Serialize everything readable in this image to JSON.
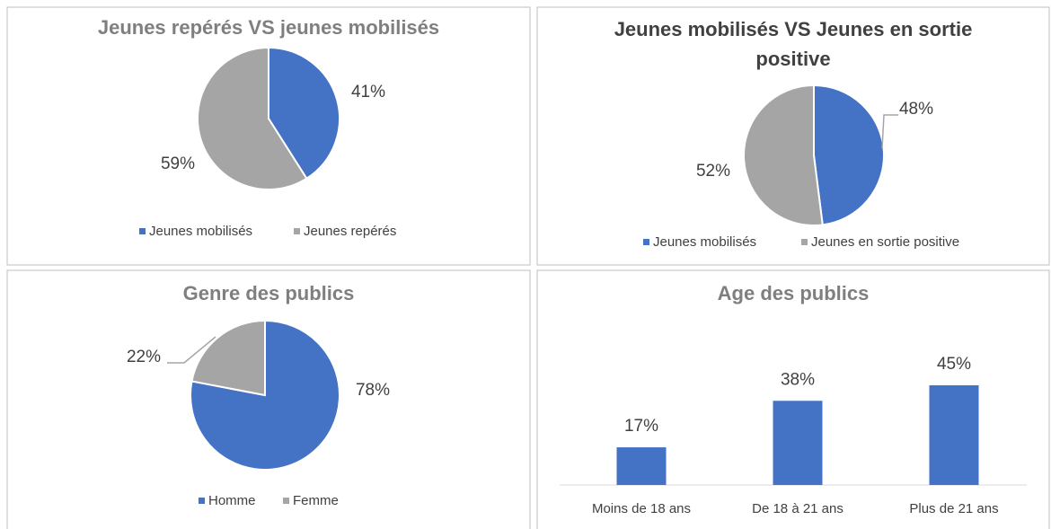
{
  "chart_data": [
    {
      "type": "pie",
      "title": "Jeunes repérés VS jeunes mobilisés",
      "categories": [
        "Jeunes mobilisés",
        "Jeunes repérés"
      ],
      "values": [
        41,
        59
      ],
      "value_labels": [
        "41%",
        "59%"
      ],
      "colors": [
        "#4472c4",
        "#a5a5a5"
      ],
      "legend": "bottom"
    },
    {
      "type": "pie",
      "title": "Jeunes mobilisés VS Jeunes en sortie positive",
      "categories": [
        "Jeunes mobilisés",
        "Jeunes en sortie positive"
      ],
      "values": [
        48,
        52
      ],
      "value_labels": [
        "48%",
        "52%"
      ],
      "colors": [
        "#4472c4",
        "#a5a5a5"
      ],
      "legend": "bottom"
    },
    {
      "type": "pie",
      "title": "Genre des publics",
      "categories": [
        "Homme",
        "Femme"
      ],
      "values": [
        78,
        22
      ],
      "value_labels": [
        "78%",
        "22%"
      ],
      "colors": [
        "#4472c4",
        "#a5a5a5"
      ],
      "legend": "bottom"
    },
    {
      "type": "bar",
      "title": "Age des publics",
      "categories": [
        "Moins de 18 ans",
        "De 18 à 21 ans",
        "Plus de 21 ans"
      ],
      "values": [
        17,
        38,
        45
      ],
      "value_labels": [
        "17%",
        "38%",
        "45%"
      ],
      "color": "#4472c4"
    }
  ]
}
